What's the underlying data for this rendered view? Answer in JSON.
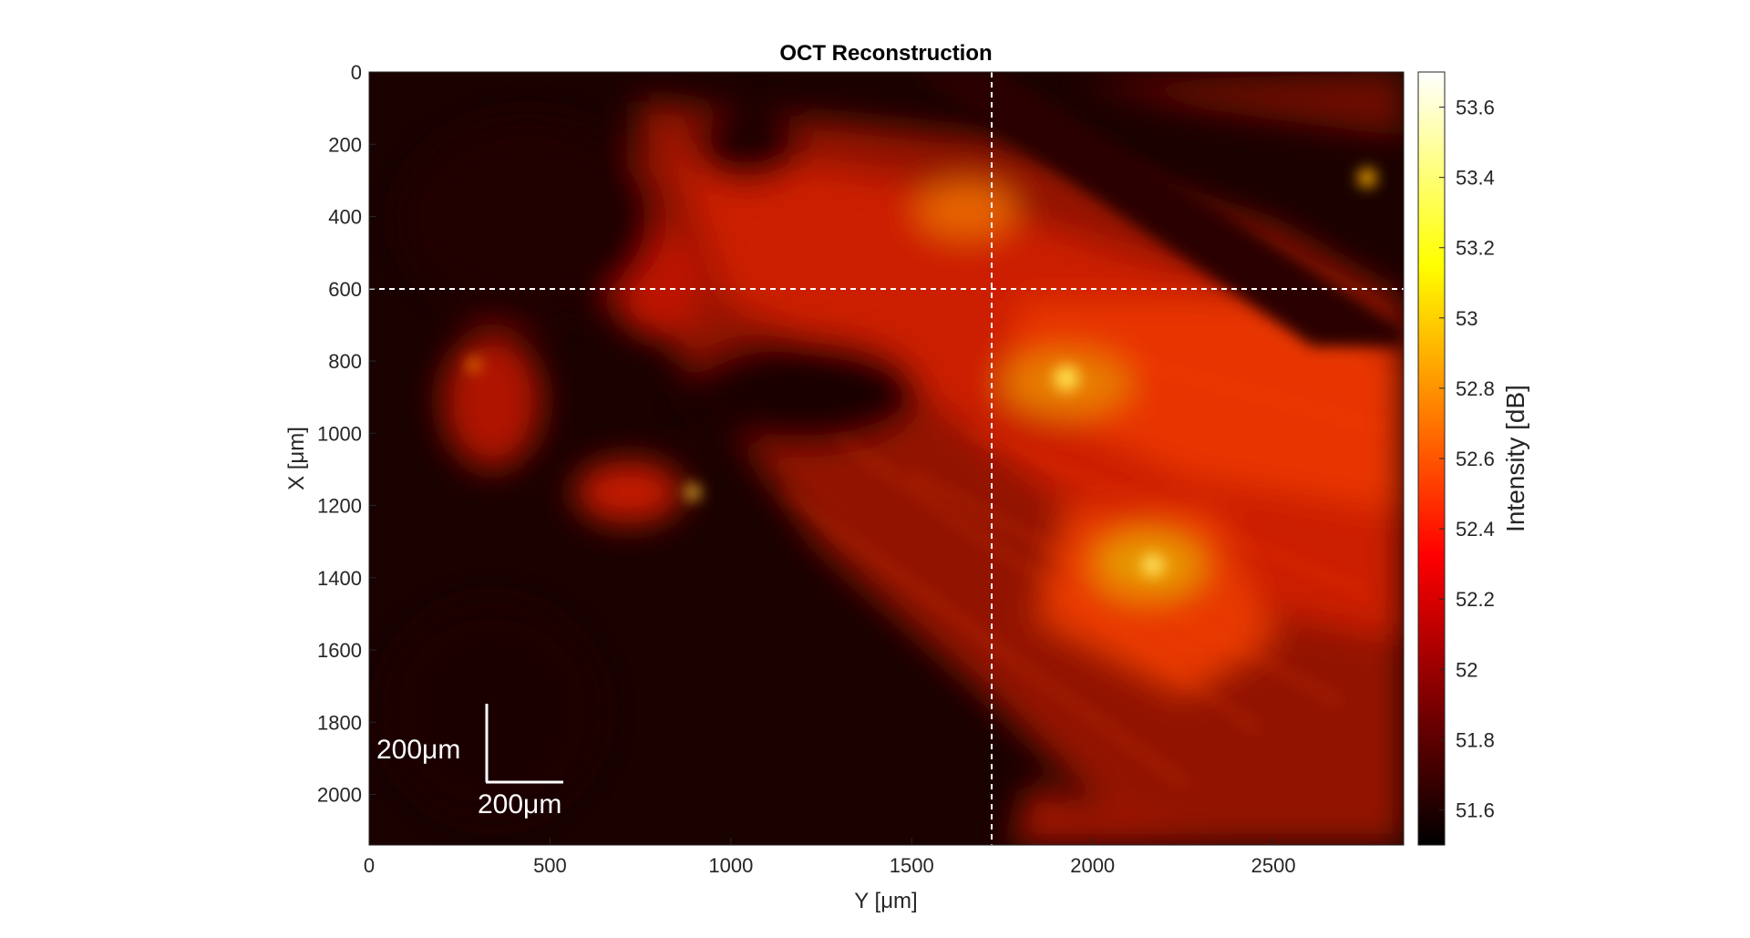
{
  "chart_data": {
    "type": "heatmap",
    "title": "OCT Reconstruction",
    "xlabel": "Y [μm]",
    "ylabel": "X [μm]",
    "xlim": [
      0,
      2860
    ],
    "ylim": [
      0,
      2140
    ],
    "y_reversed": true,
    "xticks": [
      0,
      500,
      1000,
      1500,
      2000,
      2500
    ],
    "yticks": [
      0,
      200,
      400,
      600,
      800,
      1000,
      1200,
      1400,
      1600,
      1800,
      2000
    ],
    "colormap": "hot",
    "colorbar": {
      "label": "Intensity [dB]",
      "range": [
        51.5,
        53.7
      ],
      "ticks": [
        51.6,
        51.8,
        52,
        52.2,
        52.4,
        52.6,
        52.8,
        53,
        53.2,
        53.4,
        53.6
      ]
    },
    "crosshair": {
      "x": 1720,
      "y": 600,
      "color": "#ffffff",
      "style": "dashed"
    },
    "scale_bars": {
      "vertical_label": "200μm",
      "horizontal_label": "200μm",
      "length": 200
    }
  }
}
